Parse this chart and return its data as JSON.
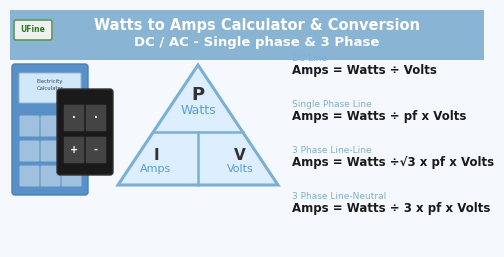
{
  "title_line1": "Watts to Amps Calculator & Conversion",
  "title_line2": "DC / AC - Single phase & 3 Phase",
  "title_bg_color": "#8ab4d4",
  "title_text_color": "#ffffff",
  "body_bg_color": "#f5f8fc",
  "triangle_fill": "#ddeeff",
  "triangle_edge_color": "#7bafd4",
  "p_label": "P",
  "p_sublabel": "Watts",
  "i_label": "I",
  "i_sublabel": "Amps",
  "v_label": "V",
  "v_sublabel": "Volts",
  "label_dark": "#333333",
  "label_blue": "#5a9ed4",
  "formula_label_color": "#7bafd4",
  "formula_text_color": "#1a1a1a",
  "dc_label": "DC Line",
  "dc_formula": "Amps = Watts ÷ Volts",
  "sp_label": "Single Phase Line",
  "sp_formula": "Amps = Watts ÷ pf x Volts",
  "3pl_label": "3 Phase Line-Line",
  "3pl_formula": "Amps = Watts ÷√3 x pf x Volts",
  "3pn_label": "3 Phase Line-Neutral",
  "3pn_formula": "Amps = Watts ÷ 3 x pf x Volts",
  "ufine_label": "UFine",
  "ufine_bg": "#f0f0f0",
  "ufine_border": "#5a9a5a",
  "calc_bg": "#5a90c8",
  "calc_border": "#4a80b8",
  "calc2_bg": "#1a1a1a",
  "calc2_border": "#333333"
}
